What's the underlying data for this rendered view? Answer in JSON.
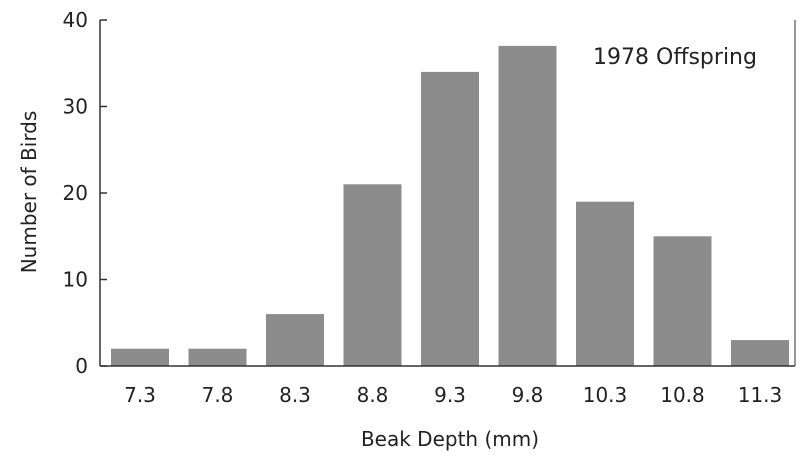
{
  "chart_data": {
    "type": "bar",
    "categories": [
      "7.3",
      "7.8",
      "8.3",
      "8.8",
      "9.3",
      "9.8",
      "10.3",
      "10.8",
      "11.3"
    ],
    "values": [
      2,
      2,
      6,
      21,
      34,
      37,
      19,
      15,
      3
    ],
    "xlabel": "Beak Depth (mm)",
    "ylabel": "Number of Birds",
    "ylim": [
      0,
      40
    ],
    "yticks": [
      "0",
      "10",
      "20",
      "30",
      "40"
    ],
    "annotation": "1978 Offspring",
    "bar_color": "#8c8c8c",
    "axis_color": "#333333",
    "grid": false
  }
}
